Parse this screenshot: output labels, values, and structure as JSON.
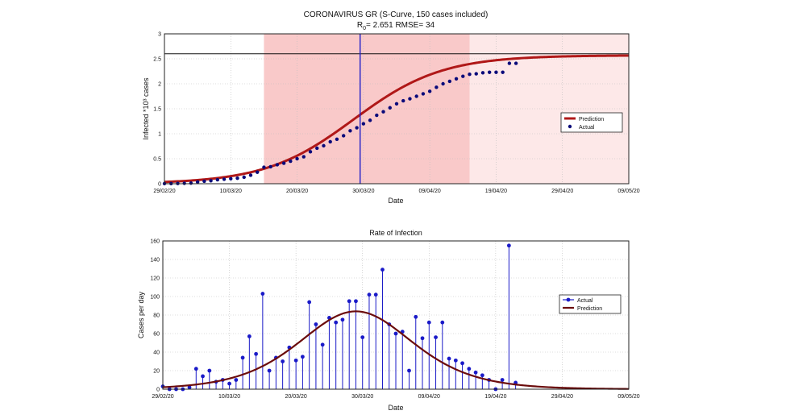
{
  "chart_data": [
    {
      "type": "line",
      "title": "CORONAVIRUS GR (S-Curve, 150 cases included)",
      "subtitle_prefix": "R",
      "subtitle_sub": "0",
      "subtitle_rest": "=  2.651  RMSE=  34",
      "xlabel": "Date",
      "ylabel": "Infected *10³ cases",
      "x_ticks": [
        "29/02/20",
        "10/03/20",
        "20/03/20",
        "30/03/20",
        "09/04/20",
        "19/04/20",
        "29/04/20",
        "09/05/20"
      ],
      "y_ticks": [
        "0",
        "0.5",
        "1",
        "1.5",
        "2",
        "2.5",
        "3"
      ],
      "xlim_days": [
        0,
        70
      ],
      "ylim": [
        0,
        3
      ],
      "grid": true,
      "legend": {
        "position": "right",
        "entries": [
          "Prediction",
          "Actual"
        ]
      },
      "hline_y": 2.6,
      "vline_day": 29.5,
      "shaded_regions": [
        {
          "from_day": 15,
          "to_day": 46,
          "color": "#f9c9c9"
        },
        {
          "from_day": 46,
          "to_day": 70,
          "color": "#fde8e8"
        }
      ],
      "colors": {
        "prediction": "#b01818",
        "actual": "#0a0a7a",
        "vline": "#2020c8"
      },
      "prediction": {
        "L": 2.57,
        "k": 0.15,
        "x0": 28.5
      },
      "series": [
        {
          "name": "Actual",
          "x": [
            0,
            1,
            2,
            3,
            4,
            5,
            6,
            7,
            8,
            9,
            10,
            11,
            12,
            13,
            14,
            15,
            16,
            17,
            18,
            19,
            20,
            21,
            22,
            23,
            24,
            25,
            26,
            27,
            28,
            29,
            30,
            31,
            32,
            33,
            34,
            35,
            36,
            37,
            38,
            39,
            40,
            41,
            42,
            43,
            44,
            45,
            46,
            47,
            48,
            49,
            50,
            51,
            52,
            53
          ],
          "y": [
            0.002,
            0.003,
            0.005,
            0.008,
            0.012,
            0.035,
            0.05,
            0.06,
            0.08,
            0.09,
            0.1,
            0.11,
            0.13,
            0.17,
            0.23,
            0.33,
            0.34,
            0.38,
            0.41,
            0.45,
            0.5,
            0.54,
            0.64,
            0.71,
            0.76,
            0.84,
            0.89,
            0.96,
            1.06,
            1.12,
            1.2,
            1.27,
            1.37,
            1.44,
            1.52,
            1.6,
            1.66,
            1.7,
            1.75,
            1.8,
            1.85,
            1.93,
            2.0,
            2.05,
            2.1,
            2.15,
            2.19,
            2.2,
            2.22,
            2.23,
            2.23,
            2.23,
            2.41,
            2.41
          ]
        }
      ]
    },
    {
      "type": "line",
      "title": "Rate of Infection",
      "xlabel": "Date",
      "ylabel": "Cases per day",
      "x_ticks": [
        "29/02/20",
        "10/03/20",
        "20/03/20",
        "30/03/20",
        "09/04/20",
        "19/04/20",
        "29/04/20",
        "09/05/20"
      ],
      "y_ticks": [
        "0",
        "20",
        "40",
        "60",
        "80",
        "100",
        "120",
        "140",
        "160"
      ],
      "xlim_days": [
        0,
        70
      ],
      "ylim": [
        0,
        160
      ],
      "grid": true,
      "legend": {
        "position": "right",
        "entries": [
          "Actual",
          "Prediction"
        ]
      },
      "colors": {
        "actual": "#1a1ac8",
        "prediction": "#6b0c0c"
      },
      "prediction": {
        "peak": 84,
        "center": 29,
        "sigma": 11.5
      },
      "series": [
        {
          "name": "Actual",
          "x": [
            0,
            1,
            2,
            3,
            4,
            5,
            6,
            7,
            8,
            9,
            10,
            11,
            12,
            13,
            14,
            15,
            16,
            17,
            18,
            19,
            20,
            21,
            22,
            23,
            24,
            25,
            26,
            27,
            28,
            29,
            30,
            31,
            32,
            33,
            34,
            35,
            36,
            37,
            38,
            39,
            40,
            41,
            42,
            43,
            44,
            45,
            46,
            47,
            48,
            49,
            50,
            51,
            52,
            53
          ],
          "y": [
            3,
            0,
            0,
            0,
            2,
            22,
            14,
            20,
            8,
            10,
            6,
            10,
            34,
            57,
            38,
            103,
            20,
            34,
            30,
            45,
            31,
            35,
            94,
            70,
            48,
            77,
            72,
            75,
            95,
            95,
            56,
            102,
            102,
            129,
            70,
            60,
            62,
            20,
            78,
            55,
            72,
            56,
            72,
            33,
            31,
            28,
            22,
            18,
            15,
            10,
            0,
            10,
            155,
            7
          ]
        }
      ]
    }
  ]
}
